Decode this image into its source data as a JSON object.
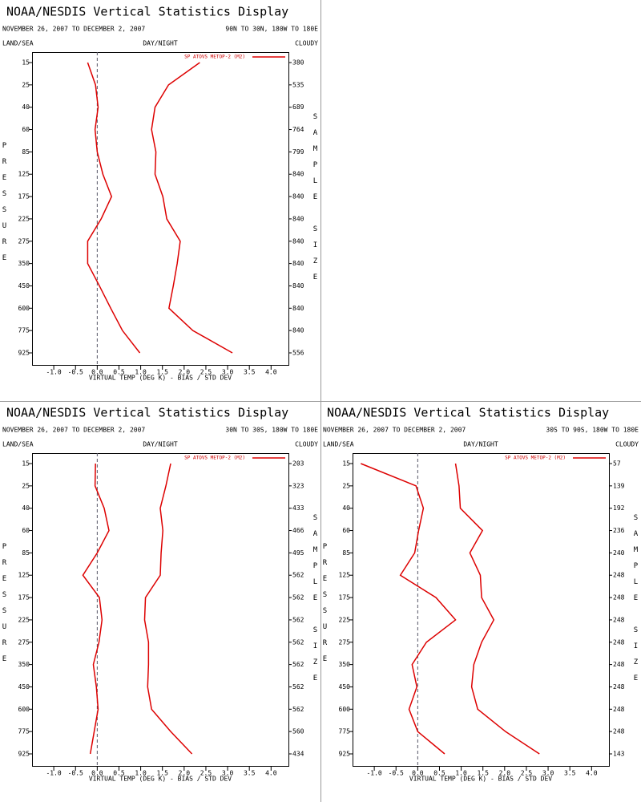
{
  "chart_data": [
    {
      "type": "line",
      "title": "NOAA/NESDIS Vertical Statistics Display",
      "subtitle": "NOVEMBER 26, 2007 TO DECEMBER 2, 2007",
      "region": "90N TO 30N, 180W TO 180E",
      "left_header": "LAND/SEA",
      "center_header": "DAY/NIGHT",
      "right_header": "CLOUDY",
      "ylabel": "PRESSURE",
      "y2label": "SAMPLE SIZE",
      "xlabel": "VIRTUAL TEMP (DEG K) - BIAS / STD DEV",
      "categories": [
        15,
        25,
        40,
        60,
        85,
        125,
        175,
        225,
        275,
        350,
        450,
        600,
        775,
        925
      ],
      "sample_size": [
        380,
        535,
        689,
        764,
        799,
        840,
        840,
        840,
        840,
        840,
        840,
        840,
        840,
        556
      ],
      "series": [
        {
          "name": "SP ATOVS METOP-2 (M2)",
          "color": "#dd0000",
          "bias": [
            -0.22,
            -0.04,
            0.02,
            -0.05,
            0,
            0.13,
            0.33,
            0.09,
            -0.22,
            -0.22,
            0.05,
            0.31,
            0.58,
            0.98
          ],
          "std_dev": [
            2.36,
            1.64,
            1.33,
            1.25,
            1.35,
            1.33,
            1.51,
            1.6,
            1.91,
            1.84,
            1.75,
            1.65,
            2.2,
            3.11
          ]
        }
      ],
      "xlim": [
        -1.5,
        4.4
      ],
      "xticks": [
        {
          "value": -1,
          "label": "-1.0"
        },
        -0.5,
        {
          "value": 0,
          "label": "0.0"
        },
        0.5,
        {
          "value": 1,
          "label": "1.0"
        },
        1.5,
        {
          "value": 2,
          "label": "2.0"
        },
        2.5,
        {
          "value": 3,
          "label": "3.0"
        },
        3.5,
        {
          "value": 4,
          "label": "4.0"
        }
      ]
    },
    {
      "type": "line",
      "title": "NOAA/NESDIS Vertical Statistics Display",
      "subtitle": "NOVEMBER 26, 2007 TO DECEMBER 2, 2007",
      "region": "30N TO 30S, 180W TO 180E",
      "left_header": "LAND/SEA",
      "center_header": "DAY/NIGHT",
      "right_header": "CLOUDY",
      "ylabel": "PRESSURE",
      "y2label": "SAMPLE SIZE",
      "xlabel": "VIRTUAL TEMP (DEG K) - BIAS / STD DEV",
      "categories": [
        15,
        25,
        40,
        60,
        85,
        125,
        175,
        225,
        275,
        350,
        450,
        600,
        775,
        925
      ],
      "sample_size": [
        203,
        323,
        433,
        466,
        495,
        562,
        562,
        562,
        562,
        562,
        562,
        562,
        560,
        434
      ],
      "series": [
        {
          "name": "SP ATOVS METOP-2 (M2)",
          "color": "#dd0000",
          "bias": [
            -0.04,
            -0.05,
            0.16,
            0.27,
            0,
            -0.33,
            0.05,
            0.11,
            0.04,
            -0.09,
            -0.02,
            0.02,
            -0.07,
            -0.16
          ],
          "std_dev": [
            1.69,
            1.58,
            1.45,
            1.51,
            1.47,
            1.45,
            1.11,
            1.09,
            1.18,
            1.18,
            1.16,
            1.25,
            1.69,
            2.18
          ]
        }
      ],
      "xlim": [
        -1.5,
        4.4
      ],
      "xticks": [
        {
          "value": -1,
          "label": "-1.0"
        },
        -0.5,
        {
          "value": 0,
          "label": "0.0"
        },
        0.5,
        {
          "value": 1,
          "label": "1.0"
        },
        1.5,
        {
          "value": 2,
          "label": "2.0"
        },
        2.5,
        {
          "value": 3,
          "label": "3.0"
        },
        3.5,
        {
          "value": 4,
          "label": "4.0"
        }
      ]
    },
    {
      "type": "line",
      "title": "NOAA/NESDIS Vertical Statistics Display",
      "subtitle": "NOVEMBER 26, 2007 TO DECEMBER 2, 2007",
      "region": "30S TO 90S, 180W TO 180E",
      "left_header": "LAND/SEA",
      "center_header": "DAY/NIGHT",
      "right_header": "CLOUDY",
      "ylabel": "PRESSURE",
      "y2label": "SAMPLE SIZE",
      "xlabel": "VIRTUAL TEMP (DEG K) - BIAS / STD DEV",
      "categories": [
        15,
        25,
        40,
        60,
        85,
        125,
        175,
        225,
        275,
        350,
        450,
        600,
        775,
        925
      ],
      "sample_size": [
        57,
        139,
        192,
        236,
        240,
        248,
        248,
        248,
        248,
        248,
        248,
        248,
        248,
        143
      ],
      "series": [
        {
          "name": "SP ATOVS METOP-2 (M2)",
          "color": "#dd0000",
          "bias": [
            -1.31,
            -0.04,
            0.13,
            0.02,
            -0.07,
            -0.4,
            0.42,
            0.87,
            0.2,
            -0.13,
            -0.02,
            -0.2,
            0,
            0.62
          ],
          "std_dev": [
            0.87,
            0.95,
            0.98,
            1.49,
            1.2,
            1.44,
            1.47,
            1.75,
            1.47,
            1.29,
            1.24,
            1.38,
            2.02,
            2.8
          ]
        }
      ],
      "xlim": [
        -1.5,
        4.4
      ],
      "xticks": [
        {
          "value": -1,
          "label": "-1.0"
        },
        -0.5,
        {
          "value": 0,
          "label": "0.0"
        },
        0.5,
        {
          "value": 1,
          "label": "1.0"
        },
        1.5,
        {
          "value": 2,
          "label": "2.0"
        },
        2.5,
        {
          "value": 3,
          "label": "3.0"
        },
        3.5,
        {
          "value": 4,
          "label": "4.0"
        }
      ]
    }
  ]
}
